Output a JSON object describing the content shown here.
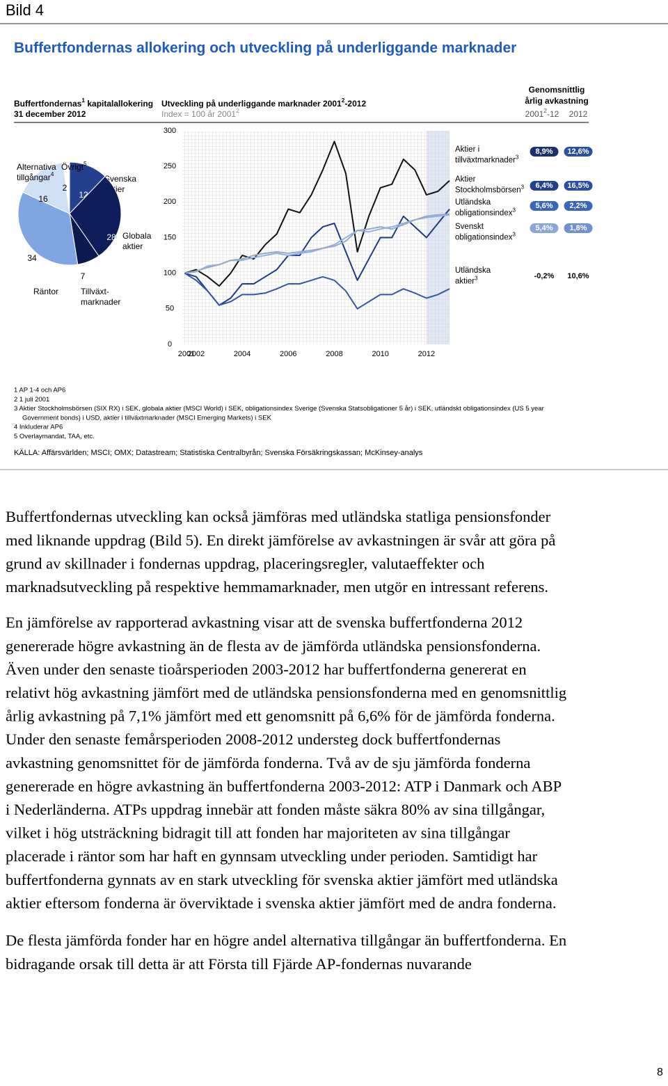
{
  "header": {
    "label": "Bild 4"
  },
  "title": "Buffertfondernas allokering och utveckling på underliggande marknader",
  "chart_data": [
    {
      "type": "pie",
      "title": "Buffertfondernas",
      "title_note": "1",
      "title_rest": " kapitalallokering",
      "subtitle": "31 december 2012",
      "slices": [
        {
          "label": [
            "Svenska",
            "aktier"
          ],
          "value": 12,
          "color": "#23418f"
        },
        {
          "label": [
            "Globala",
            "aktier"
          ],
          "value": 28,
          "color": "#0e1e5a"
        },
        {
          "label": [
            "Tillväxt-",
            "marknader"
          ],
          "value": 7,
          "color": "#0b1a4e"
        },
        {
          "label": [
            "Räntor"
          ],
          "value": 34,
          "color": "#7fa6e0"
        },
        {
          "label": [
            "Alternativa",
            "tillgångar"
          ],
          "note": "4",
          "value": 16,
          "color": "#cfdff6"
        },
        {
          "label": [
            "Övrigt"
          ],
          "note": "5",
          "value": 2,
          "color": "#ffffff"
        }
      ]
    },
    {
      "type": "line",
      "title": "Utveckling på underliggande marknader 2001",
      "title_note": "2",
      "title_rest": "-2012",
      "subtitle": "Index = 100 år 2001",
      "subtitle_note": "2",
      "x": [
        2001.5,
        2002,
        2002.5,
        2003,
        2003.5,
        2004,
        2004.5,
        2005,
        2005.5,
        2006,
        2006.5,
        2007,
        2007.5,
        2008,
        2008.5,
        2009,
        2009.5,
        2010,
        2010.5,
        2011,
        2011.5,
        2012,
        2012.5,
        2013
      ],
      "xlim": [
        2001.4,
        2013
      ],
      "xticks": [
        2001,
        2002,
        2004,
        2006,
        2008,
        2010,
        2012
      ],
      "ylim": [
        0,
        300
      ],
      "yticks": [
        0,
        50,
        100,
        150,
        200,
        250,
        300
      ],
      "shaded_xrange": [
        2012,
        2013
      ],
      "grid": true,
      "returns_header": {
        "line1": "Genomsnittlig",
        "line2": "årlig avkastning",
        "col1": "2001",
        "col1_note": "2",
        "col1_rest": "-12",
        "col2": "2012"
      },
      "series": [
        {
          "name": [
            "Aktier i",
            "tillväxtmarknader"
          ],
          "note": "3",
          "color": "#111111",
          "values": [
            100,
            105,
            95,
            82,
            100,
            125,
            120,
            140,
            155,
            190,
            185,
            210,
            245,
            285,
            240,
            130,
            180,
            220,
            225,
            260,
            245,
            210,
            215,
            230
          ],
          "return_avg": "8,9%",
          "return_2012": "12,6%"
        },
        {
          "name": [
            "Aktier",
            "Stockholmsbörsen"
          ],
          "note": "3",
          "color": "#1d3a86",
          "values": [
            100,
            95,
            75,
            55,
            65,
            85,
            85,
            95,
            105,
            125,
            125,
            150,
            165,
            170,
            130,
            90,
            120,
            150,
            150,
            180,
            165,
            150,
            170,
            190
          ],
          "return_avg": "6,4%",
          "return_2012": "16,5%"
        },
        {
          "name": [
            "Utländska",
            "obligationsindex"
          ],
          "note": "3",
          "color": "#8ab4ea",
          "values": [
            100,
            102,
            110,
            112,
            118,
            118,
            122,
            125,
            128,
            125,
            128,
            130,
            135,
            140,
            150,
            160,
            158,
            162,
            165,
            170,
            175,
            178,
            180,
            182
          ],
          "return_avg": "5,6%",
          "return_2012": "2,2%"
        },
        {
          "name": [
            "Svenskt",
            "obligationsindex"
          ],
          "note": "3",
          "color": "#9ea9bf",
          "values": [
            100,
            103,
            108,
            112,
            118,
            120,
            125,
            128,
            130,
            128,
            130,
            132,
            135,
            138,
            145,
            160,
            162,
            165,
            162,
            168,
            175,
            180,
            182,
            183
          ],
          "return_avg": "5,4%",
          "return_2012": "1,8%"
        },
        {
          "name": [
            "Utländska",
            "aktier"
          ],
          "note": "3",
          "color": "#3557a8",
          "values": [
            100,
            90,
            75,
            55,
            60,
            70,
            70,
            72,
            78,
            85,
            85,
            90,
            95,
            90,
            75,
            50,
            60,
            70,
            70,
            78,
            72,
            65,
            70,
            78
          ],
          "return_avg": "-0,2%",
          "return_2012": "10,6%"
        }
      ]
    }
  ],
  "footnotes": [
    [
      "1 AP 1-4 och AP6"
    ],
    [
      "2 1 juli 2001"
    ],
    [
      "3 Aktier Stockholmsbörsen (SIX RX) i SEK, globala aktier (MSCI World) i SEK, obligationsindex Sverige (Svenska Statsobligationer 5 år) i SEK, utländskt obligationsindex (US 5 year",
      "Government bonds) i USD, aktier i tillväxtmarknader (MSCI Emerging Markets) i SEK"
    ],
    [
      "4 Inkluderar AP6"
    ],
    [
      "5 Overlaymandat, TAA, etc."
    ]
  ],
  "source": "KÄLLA: Affärsvärlden; MSCI; OMX; Datastream; Statistiska Centralbyrån; Svenska Försäkringskassan; McKinsey-analys",
  "body": [
    [
      "Buffertfondernas utveckling kan också jämföras med utländska statliga pensionsfonder",
      "med liknande uppdrag (Bild 5). En direkt jämförelse av avkastningen är svår att göra på",
      "grund av skillnader i fondernas uppdrag, placeringsregler, valutaeffekter och",
      "marknadsutveckling på respektive hemmamarknader, men utgör en intressant referens."
    ],
    [
      "En jämförelse av rapporterad avkastning visar att de svenska buffertfonderna 2012",
      "genererade högre avkastning än de flesta av de jämförda utländska pensionsfonderna.",
      "Även under den senaste tioårsperioden 2003-2012 har buffertfonderna genererat en",
      "relativt hög avkastning jämfört med de utländska pensionsfonderna med en genomsnittlig",
      "årlig avkastning på 7,1% jämfört med ett genomsnitt på 6,6% för de jämförda fonderna.",
      "Under den senaste femårsperioden 2008-2012 understeg dock buffertfondernas",
      "avkastning genomsnittet för de jämförda fonderna. Två av de sju jämförda fonderna",
      "genererade en högre avkastning än buffertfonderna 2003-2012: ATP i Danmark och ABP",
      "i Nederländerna. ATPs uppdrag innebär att fonden måste säkra 80% av sina tillgångar,",
      "vilket i hög utsträckning bidragit till att fonden har majoriteten av sina tillgångar",
      "placerade i räntor som har haft en gynnsam utveckling under perioden. Samtidigt har",
      "buffertfonderna gynnats av en stark utveckling för svenska aktier jämfört med utländska",
      "aktier eftersom fonderna är överviktade i svenska aktier jämfört med de andra fonderna."
    ],
    [
      "De flesta jämförda fonder har en högre andel alternativa tillgångar än buffertfonderna. En",
      "bidragande orsak till detta är att Första till Fjärde AP-fondernas nuvarande"
    ]
  ],
  "page_number": "8"
}
